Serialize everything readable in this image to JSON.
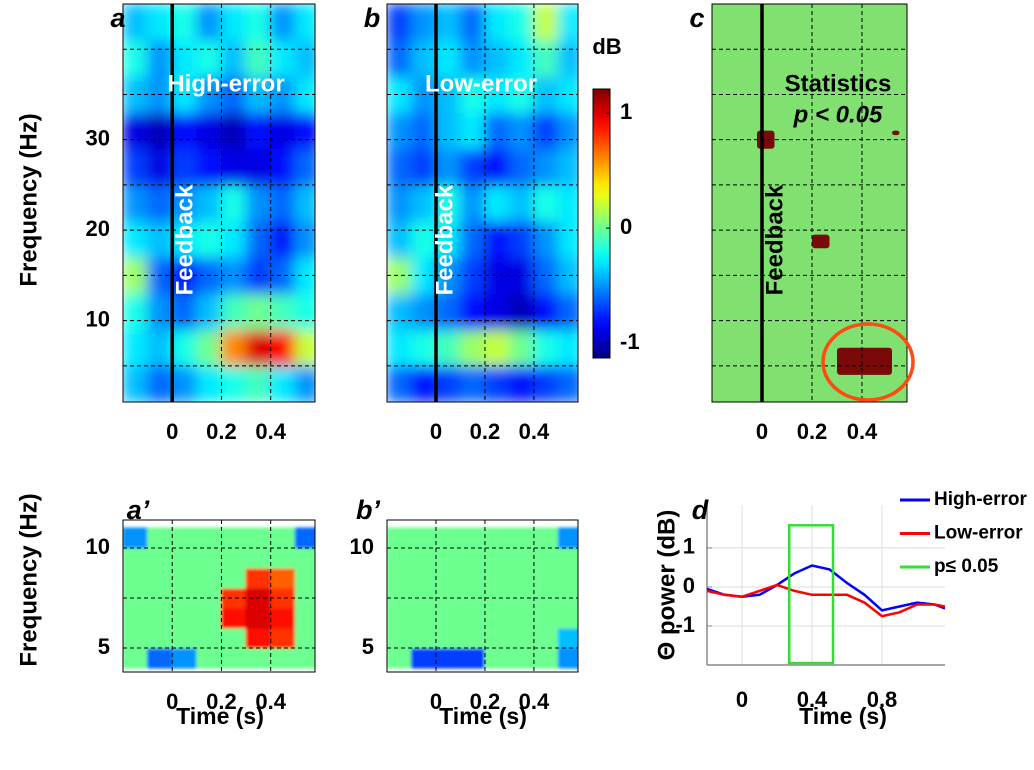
{
  "chart_data": [
    {
      "type": "heatmap",
      "panel_label": "a",
      "title": "High-error",
      "ylabel": "Frequency (Hz)",
      "event": {
        "x": 0,
        "label": "Feedback"
      },
      "x": [
        -0.15,
        -0.05,
        0.05,
        0.15,
        0.25,
        0.35,
        0.45,
        0.55
      ],
      "y": [
        3,
        7,
        11,
        15,
        19,
        23,
        27,
        31,
        35,
        39,
        43
      ],
      "z": [
        [
          -0.4,
          -0.6,
          -0.5,
          -0.3,
          -0.2,
          -0.1,
          -0.3,
          -0.5
        ],
        [
          -0.3,
          -0.4,
          -0.2,
          0.0,
          0.6,
          1.0,
          0.9,
          0.2
        ],
        [
          -0.2,
          -0.5,
          -0.6,
          -0.4,
          -0.1,
          0.0,
          -0.1,
          -0.2
        ],
        [
          0.1,
          -0.6,
          -0.8,
          -0.6,
          -0.5,
          -0.7,
          -0.6,
          -0.3
        ],
        [
          -0.3,
          -0.4,
          -0.3,
          -0.2,
          -0.3,
          -0.6,
          -0.8,
          -0.5
        ],
        [
          -0.5,
          -0.6,
          -0.5,
          -0.4,
          -0.2,
          -0.5,
          -0.6,
          -0.4
        ],
        [
          -0.7,
          -0.9,
          -0.7,
          -0.8,
          -0.9,
          -0.9,
          -0.8,
          -0.6
        ],
        [
          -0.9,
          -1.0,
          -0.8,
          -0.9,
          -1.0,
          -0.8,
          -0.9,
          -0.8
        ],
        [
          -0.4,
          -0.5,
          -0.3,
          -0.5,
          -0.6,
          -0.4,
          -0.5,
          -0.3
        ],
        [
          -0.2,
          -0.5,
          -0.3,
          -0.2,
          -0.4,
          -0.1,
          -0.3,
          -0.4
        ],
        [
          -0.4,
          -0.3,
          -0.2,
          -0.5,
          -0.3,
          -0.2,
          -0.5,
          -0.3
        ]
      ],
      "clim": [
        -1.13,
        1.21
      ],
      "xlim": [
        -0.2,
        0.58
      ],
      "ylim": [
        1,
        45
      ],
      "xticks": [
        0,
        0.2,
        0.4
      ],
      "yticks": [
        {
          "value": 5,
          "label": null
        },
        10,
        {
          "value": 15,
          "label": null
        },
        20,
        {
          "value": 25,
          "label": null
        },
        30,
        {
          "value": 35,
          "label": null
        },
        {
          "value": 40,
          "label": null
        }
      ],
      "grid": true
    },
    {
      "type": "heatmap",
      "panel_label": "b",
      "title": "Low-error",
      "event": {
        "x": 0,
        "label": "Feedback"
      },
      "x": [
        -0.15,
        -0.05,
        0.05,
        0.15,
        0.25,
        0.35,
        0.45,
        0.55
      ],
      "y": [
        3,
        7,
        11,
        15,
        19,
        23,
        27,
        31,
        35,
        39,
        43
      ],
      "z": [
        [
          -0.6,
          -0.8,
          -0.7,
          -0.6,
          -0.7,
          -0.8,
          -0.7,
          -0.6
        ],
        [
          -0.3,
          -0.2,
          -0.1,
          0.1,
          0.2,
          0.0,
          -0.2,
          -0.3
        ],
        [
          -0.4,
          -0.5,
          -0.6,
          -0.8,
          -0.9,
          -1.0,
          -0.8,
          -0.6
        ],
        [
          0.1,
          -0.3,
          -0.5,
          -0.7,
          -0.9,
          -0.9,
          -0.6,
          -0.4
        ],
        [
          -0.4,
          -0.2,
          -0.3,
          -0.6,
          -0.8,
          -0.7,
          -0.5,
          -0.3
        ],
        [
          -0.5,
          -0.4,
          -0.2,
          -0.5,
          -0.3,
          -0.4,
          -0.2,
          -0.3
        ],
        [
          -0.6,
          -0.7,
          -0.5,
          -0.7,
          -0.8,
          -0.6,
          -0.5,
          -0.4
        ],
        [
          -0.5,
          -0.6,
          -0.4,
          -0.3,
          -0.6,
          -0.5,
          -0.7,
          -0.5
        ],
        [
          -0.3,
          -0.5,
          -0.4,
          -0.2,
          -0.3,
          -0.2,
          -0.4,
          -0.3
        ],
        [
          -0.6,
          -0.4,
          -0.3,
          -0.5,
          -0.4,
          -0.3,
          -0.1,
          -0.4
        ],
        [
          -0.7,
          -0.5,
          -0.4,
          -0.6,
          -0.3,
          -0.2,
          0.2,
          -0.3
        ]
      ],
      "clim": [
        -1.13,
        1.21
      ],
      "xlim": [
        -0.2,
        0.58
      ],
      "ylim": [
        1,
        45
      ],
      "xticks": [
        0,
        0.2,
        0.4
      ],
      "yticks": [
        {
          "value": 5,
          "label": null
        },
        {
          "value": 10,
          "label": null
        },
        {
          "value": 15,
          "label": null
        },
        {
          "value": 20,
          "label": null
        },
        {
          "value": 25,
          "label": null
        },
        {
          "value": 30,
          "label": null
        },
        {
          "value": 35,
          "label": null
        },
        {
          "value": 40,
          "label": null
        }
      ],
      "grid": true,
      "colorbar": {
        "label": "dB",
        "ticks": [
          -1,
          0,
          1
        ]
      }
    },
    {
      "type": "significance",
      "panel_label": "c",
      "title": "Statistics",
      "subtitle": "p < 0.05",
      "event": {
        "x": 0,
        "label": "Feedback"
      },
      "background": "#80e070",
      "color": "#7a0a0a",
      "clusters": [
        {
          "x": [
            -0.02,
            0.05
          ],
          "y": [
            29,
            31
          ]
        },
        {
          "x": [
            0.2,
            0.27
          ],
          "y": [
            18,
            19.5
          ]
        },
        {
          "x": [
            0.3,
            0.52
          ],
          "y": [
            4,
            7
          ]
        },
        {
          "x": [
            0.52,
            0.55
          ],
          "y": [
            30.5,
            31
          ]
        }
      ],
      "xlim": [
        -0.2,
        0.58
      ],
      "ylim": [
        1,
        45
      ],
      "xticks": [
        0,
        0.2,
        0.4
      ],
      "yticks": [
        {
          "value": 5,
          "label": null
        },
        {
          "value": 10,
          "label": null
        },
        {
          "value": 15,
          "label": null
        },
        {
          "value": 20,
          "label": null
        },
        {
          "value": 25,
          "label": null
        },
        {
          "value": 30,
          "label": null
        },
        {
          "value": 35,
          "label": null
        },
        {
          "value": 40,
          "label": null
        }
      ],
      "grid": true
    },
    {
      "type": "heatmap",
      "panel_label": "a’",
      "ylabel": "Frequency (Hz)",
      "xlabel": "Time (s)",
      "x": [
        -0.15,
        -0.05,
        0.05,
        0.15,
        0.25,
        0.35,
        0.45,
        0.55
      ],
      "y": [
        4.5,
        5.5,
        6.5,
        7.5,
        8.5,
        9.5,
        10.5
      ],
      "z": [
        [
          0,
          -0.6,
          -0.5,
          0,
          0,
          0,
          0,
          0
        ],
        [
          0,
          0,
          0,
          0,
          0,
          0.9,
          0.8,
          0
        ],
        [
          0,
          0,
          0,
          0,
          0.9,
          1.0,
          0.9,
          0
        ],
        [
          0,
          0,
          0,
          0,
          0.8,
          1.0,
          0.8,
          0
        ],
        [
          0,
          0,
          0,
          0,
          0,
          0.8,
          0.7,
          0
        ],
        [
          0,
          0,
          0,
          0,
          0,
          0,
          0,
          0
        ],
        [
          -0.5,
          0,
          0,
          0,
          0,
          0,
          0,
          -0.6
        ]
      ],
      "clim": [
        -1.13,
        1.21
      ],
      "xlim": [
        -0.2,
        0.58
      ],
      "ylim": [
        3.8,
        11.4
      ],
      "xticks": [
        0,
        0.2,
        0.4
      ],
      "yticks": [
        5,
        {
          "value": 7.5,
          "label": null
        },
        10
      ],
      "grid": true
    },
    {
      "type": "heatmap",
      "panel_label": "b’",
      "xlabel": "Time (s)",
      "x": [
        -0.15,
        -0.05,
        0.05,
        0.15,
        0.25,
        0.35,
        0.45,
        0.55
      ],
      "y": [
        4.5,
        5.5,
        6.5,
        7.5,
        8.5,
        9.5,
        10.5
      ],
      "z": [
        [
          0,
          -0.7,
          -0.7,
          -0.7,
          0,
          0,
          0,
          -0.5
        ],
        [
          0,
          0,
          0,
          0,
          0,
          0,
          0,
          -0.4
        ],
        [
          0,
          0,
          0,
          0,
          0,
          0,
          0,
          0
        ],
        [
          0,
          0,
          0,
          0,
          0,
          0,
          0,
          0
        ],
        [
          0,
          0,
          0,
          0,
          0,
          0,
          0,
          0
        ],
        [
          0,
          0,
          0,
          0,
          0,
          0,
          0,
          0
        ],
        [
          0,
          0,
          0,
          0,
          0,
          0,
          0,
          -0.5
        ]
      ],
      "clim": [
        -1.13,
        1.21
      ],
      "xlim": [
        -0.2,
        0.58
      ],
      "ylim": [
        3.8,
        11.4
      ],
      "xticks": [
        0,
        0.2,
        0.4
      ],
      "yticks": [
        5,
        {
          "value": 7.5,
          "label": null
        },
        10
      ],
      "grid": true
    },
    {
      "type": "line",
      "panel_label": "d",
      "ylabel": "Θ power (dB)",
      "xlabel": "Time (s)",
      "x": [
        -0.2,
        -0.1,
        0,
        0.1,
        0.2,
        0.3,
        0.4,
        0.5,
        0.6,
        0.7,
        0.8,
        0.9,
        1.0,
        1.1,
        1.16
      ],
      "series": [
        {
          "name": "High-error",
          "color": "#0000ff",
          "values": [
            -0.05,
            -0.2,
            -0.25,
            -0.2,
            0.05,
            0.35,
            0.55,
            0.45,
            0.1,
            -0.2,
            -0.6,
            -0.5,
            -0.4,
            -0.45,
            -0.55
          ]
        },
        {
          "name": "Low-error",
          "color": "#ff0000",
          "values": [
            -0.1,
            -0.2,
            -0.25,
            -0.1,
            0.05,
            -0.1,
            -0.2,
            -0.2,
            -0.2,
            -0.4,
            -0.75,
            -0.65,
            -0.45,
            -0.45,
            -0.5
          ]
        }
      ],
      "window": {
        "name": "p≤ 0.05",
        "color": "#33dd33",
        "x": [
          0.27,
          0.52
        ],
        "y": [
          -1.95,
          1.58
        ]
      },
      "xlim": [
        -0.2,
        1.16
      ],
      "ylim": [
        -2,
        2.1
      ],
      "xticks": [
        0,
        0.4,
        0.8
      ],
      "yticks": [
        -1,
        0,
        1
      ],
      "grid": true,
      "legend": "upper right"
    }
  ]
}
